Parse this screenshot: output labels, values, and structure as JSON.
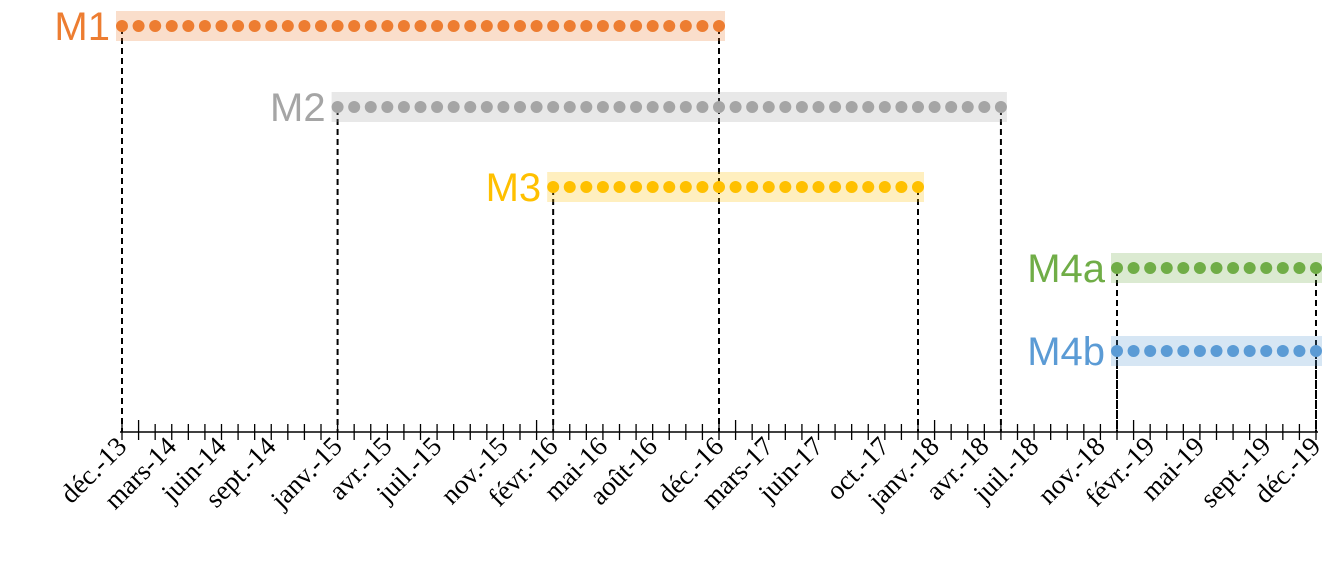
{
  "chart_data": {
    "type": "timeline",
    "x_ticks": [
      "déc.-13",
      "mars-14",
      "juin-14",
      "sept.-14",
      "janv.-15",
      "avr.-15",
      "juil.-15",
      "nov.-15",
      "févr.-16",
      "mai-16",
      "août-16",
      "déc.-16",
      "mars-17",
      "juin-17",
      "oct.-17",
      "janv.-18",
      "avr.-18",
      "juil.-18",
      "nov.-18",
      "févr.-19",
      "mai-19",
      "sept.-19",
      "déc.-19"
    ],
    "series": [
      {
        "name": "M1",
        "color": "#ED7D31",
        "start": "déc.-13",
        "end": "déc.-16"
      },
      {
        "name": "M2",
        "color": "#A5A5A5",
        "start": "janv.-15",
        "end": "mai-18"
      },
      {
        "name": "M3",
        "color": "#FFC000",
        "start": "févr.-16",
        "end": "déc.-17"
      },
      {
        "name": "M4a",
        "color": "#70AD47",
        "start": "déc.-18",
        "end": "déc.-19"
      },
      {
        "name": "M4b",
        "color": "#5B9BD5",
        "start": "déc.-18",
        "end": "déc.-19"
      }
    ]
  }
}
